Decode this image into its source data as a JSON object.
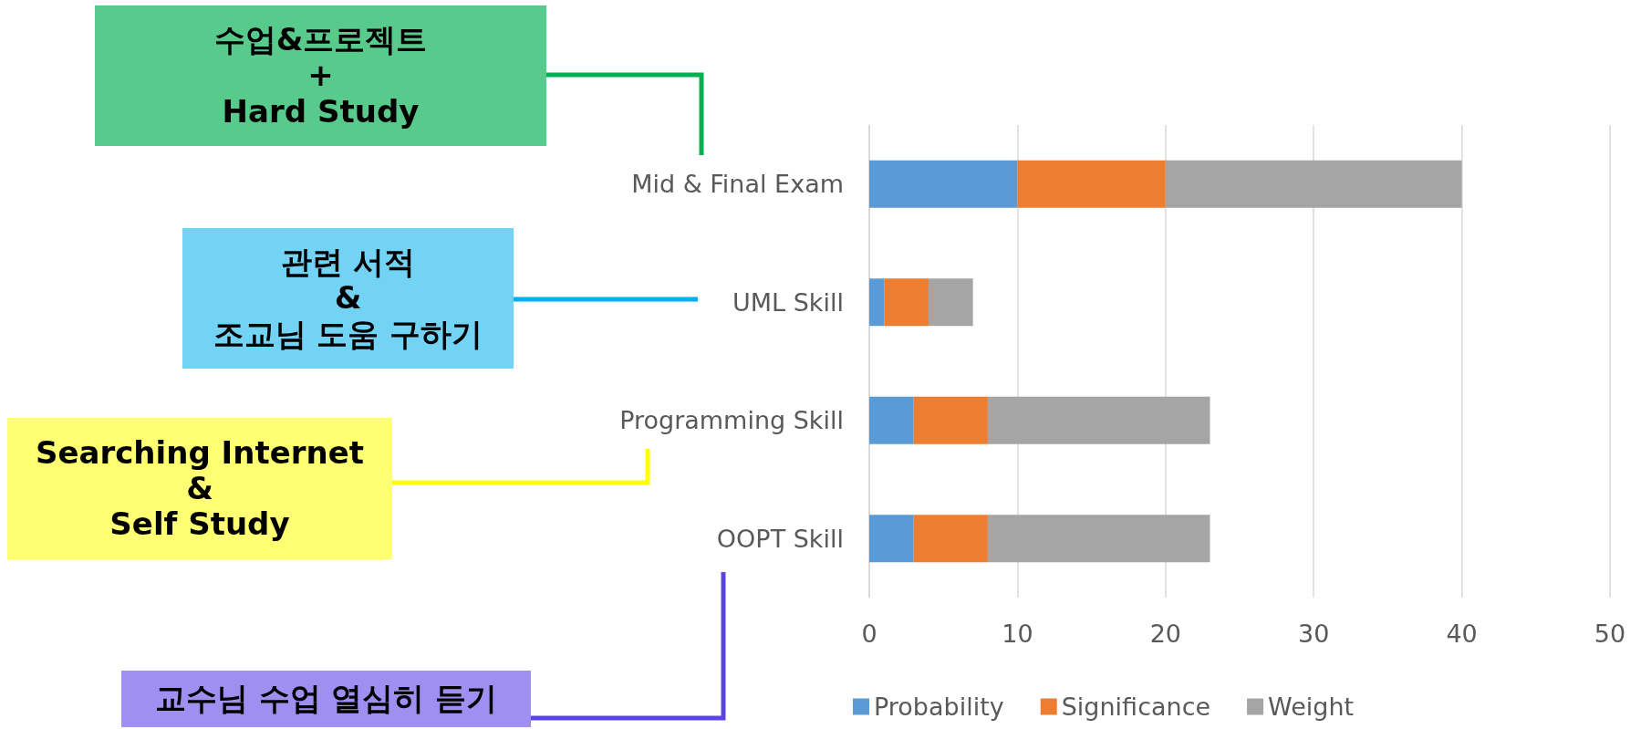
{
  "chart_data": {
    "type": "bar",
    "orientation": "horizontal",
    "stacked": true,
    "categories": [
      "Mid & Final Exam",
      "UML Skill",
      "Programming Skill",
      "OOPT Skill"
    ],
    "series": [
      {
        "name": "Probability",
        "color": "#5b9bd5",
        "values": [
          10,
          1,
          3,
          3
        ]
      },
      {
        "name": "Significance",
        "color": "#ed7d31",
        "values": [
          10,
          3,
          5,
          5
        ]
      },
      {
        "name": "Weight",
        "color": "#a5a5a5",
        "values": [
          20,
          3,
          15,
          15
        ]
      }
    ],
    "xlim": [
      0,
      50
    ],
    "xticks": [
      0,
      10,
      20,
      30,
      40,
      50
    ],
    "grid": "x",
    "legend": "bottom",
    "annotations": [
      "수업&프로젝트\n+\nHard Study",
      "관련 서적\n&\n조교님 도움 구하기",
      "Searching Internet\n&\nSelf Study",
      "교수님 수업 열심히 듣기"
    ]
  }
}
